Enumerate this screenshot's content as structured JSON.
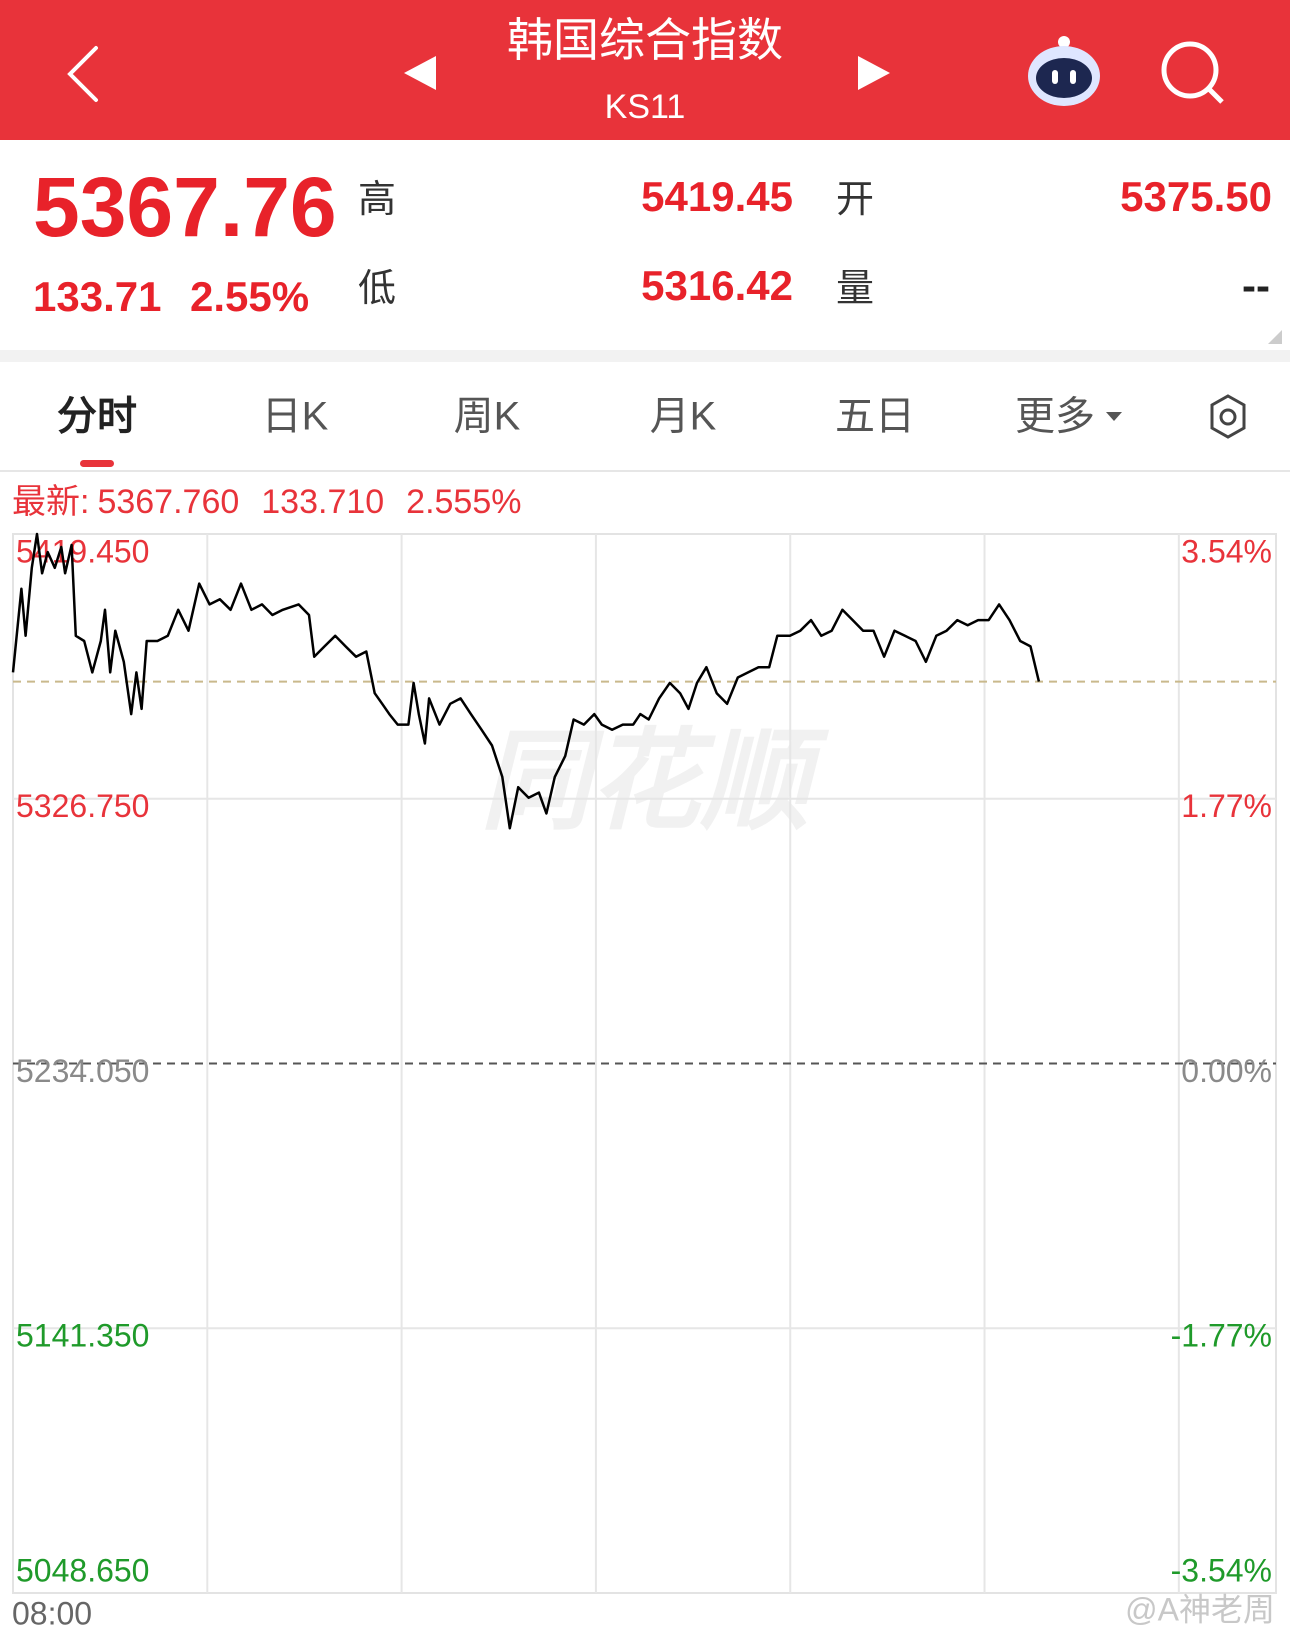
{
  "header": {
    "title": "韩国综合指数",
    "code": "KS11"
  },
  "quote": {
    "price": "5367.76",
    "change": "133.71",
    "change_pct": "2.55%",
    "high_label": "高",
    "high": "5419.45",
    "low_label": "低",
    "low": "5316.42",
    "open_label": "开",
    "open": "5375.50",
    "volume_label": "量",
    "volume": "--"
  },
  "tabs": [
    "分时",
    "日K",
    "周K",
    "月K",
    "五日",
    "更多"
  ],
  "latest": {
    "label": "最新:",
    "price": "5367.760",
    "change": "133.710",
    "change_pct": "2.555%"
  },
  "watermarks": [
    "同花顺",
    "@A神老周"
  ],
  "chart_data": {
    "type": "line",
    "color": "#000000",
    "up_color": "#e8333a",
    "down_color": "#1f9a2a",
    "flat_color": "#8a8a8a",
    "price_line": 5367.76,
    "price_line_color": "#c9b98c",
    "xlim": [
      0,
      390
    ],
    "xticks": [
      {
        "value": 0,
        "label": "08:00"
      }
    ],
    "xgrid": [
      60,
      120,
      180,
      240,
      300,
      360
    ],
    "ylim": [
      5048.65,
      5419.45
    ],
    "yticks": [
      {
        "value": 5419.45,
        "label": "5419.450"
      },
      {
        "value": 5326.75,
        "label": "5326.750"
      },
      {
        "value": 5234.05,
        "label": "5234.050"
      },
      {
        "value": 5141.35,
        "label": "5141.350"
      },
      {
        "value": 5048.65,
        "label": "5048.650"
      }
    ],
    "y2lim": [
      -3.54,
      3.54
    ],
    "y2ticks": [
      {
        "value": 3.54,
        "label": "3.54%"
      },
      {
        "value": 1.77,
        "label": "1.77%"
      },
      {
        "value": 0,
        "label": "0.00%"
      },
      {
        "value": -1.77,
        "label": "-1.77%"
      },
      {
        "value": -3.54,
        "label": "-3.54%"
      }
    ],
    "x": [
      0,
      2.6,
      3.9,
      5.8,
      7.4,
      9.0,
      10.7,
      12.9,
      14.9,
      16.1,
      18.1,
      19.4,
      22.0,
      24.5,
      27.1,
      28.4,
      30.0,
      31.6,
      34.2,
      36.5,
      38.1,
      39.7,
      41.3,
      44.6,
      47.8,
      51.0,
      54.2,
      57.5,
      60.7,
      63.9,
      67.2,
      70.4,
      73.6,
      76.9,
      80.1,
      83.3,
      88.2,
      91.4,
      93.0,
      96.2,
      99.5,
      102.7,
      105.9,
      109.1,
      111.7,
      114.0,
      116.2,
      118.8,
      122.1,
      123.7,
      125.3,
      127.2,
      128.5,
      131.7,
      135.0,
      138.2,
      141.4,
      144.7,
      147.9,
      151.1,
      153.4,
      156.0,
      159.2,
      162.4,
      164.7,
      167.3,
      170.5,
      173.1,
      176.3,
      179.5,
      181.8,
      185.0,
      188.3,
      191.5,
      193.7,
      196.3,
      199.5,
      202.8,
      206.0,
      208.6,
      211.2,
      214.1,
      217.3,
      220.5,
      223.8,
      227.0,
      230.2,
      233.5,
      236.0,
      239.9,
      243.1,
      246.4,
      249.6,
      252.8,
      256.1,
      259.3,
      262.5,
      265.7,
      269.0,
      272.2,
      275.4,
      278.7,
      281.9,
      285.1,
      288.3,
      291.6,
      294.8,
      298.0,
      301.3,
      304.5,
      307.7,
      311.0,
      314.2,
      316.8
    ],
    "values": [
      5371.0,
      5400.3,
      5383.8,
      5407.6,
      5419.45,
      5405.7,
      5413.1,
      5407.6,
      5414.9,
      5405.7,
      5415.6,
      5383.8,
      5382.0,
      5371.0,
      5382.0,
      5392.9,
      5371.0,
      5385.6,
      5374.7,
      5356.4,
      5371.0,
      5358.2,
      5382.0,
      5382.0,
      5383.8,
      5392.9,
      5385.6,
      5402.1,
      5394.8,
      5396.6,
      5392.9,
      5402.1,
      5392.9,
      5394.8,
      5391.1,
      5392.9,
      5394.8,
      5391.1,
      5376.5,
      5380.1,
      5383.8,
      5380.1,
      5376.5,
      5378.3,
      5363.7,
      5360.0,
      5356.4,
      5352.7,
      5352.7,
      5367.3,
      5356.4,
      5346.1,
      5361.9,
      5352.7,
      5360.0,
      5361.9,
      5356.4,
      5350.9,
      5345.4,
      5334.4,
      5316.42,
      5330.8,
      5327.1,
      5328.9,
      5321.6,
      5334.4,
      5341.7,
      5354.5,
      5352.7,
      5356.4,
      5352.7,
      5350.9,
      5352.7,
      5352.7,
      5356.4,
      5354.5,
      5361.9,
      5367.3,
      5363.7,
      5358.2,
      5367.3,
      5372.8,
      5363.7,
      5360.0,
      5369.2,
      5371.0,
      5372.8,
      5372.8,
      5383.8,
      5383.8,
      5385.6,
      5389.3,
      5383.8,
      5385.6,
      5392.9,
      5389.3,
      5385.6,
      5385.6,
      5376.5,
      5385.6,
      5383.8,
      5382.0,
      5374.7,
      5383.8,
      5385.6,
      5389.3,
      5387.5,
      5389.3,
      5389.3,
      5394.8,
      5389.3,
      5382.0,
      5380.1,
      5367.76
    ]
  }
}
